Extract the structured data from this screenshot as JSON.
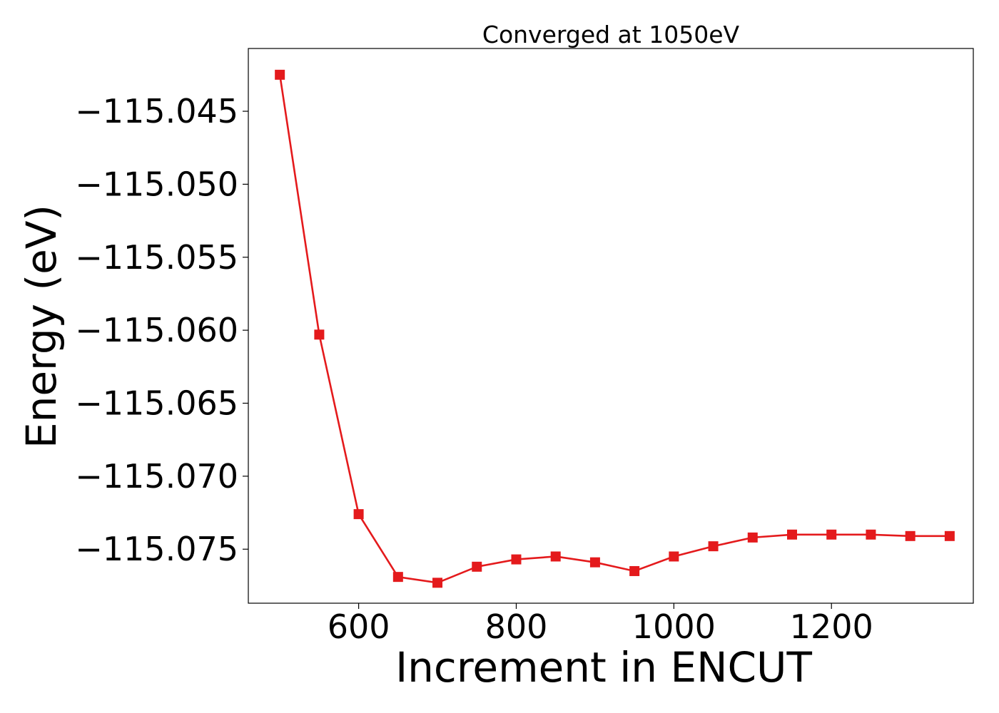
{
  "chart_data": {
    "type": "line",
    "title": "Converged at 1050eV",
    "xlabel": "Increment in ENCUT",
    "ylabel": "Energy (eV)",
    "xlim": [
      460,
      1380
    ],
    "ylim": [
      -115.0787,
      -115.0407
    ],
    "x_ticks": [
      600,
      800,
      1000,
      1200
    ],
    "y_ticks": [
      -115.075,
      -115.07,
      -115.065,
      -115.06,
      -115.055,
      -115.05,
      -115.045
    ],
    "x_tick_labels": [
      "600",
      "800",
      "1000",
      "1200"
    ],
    "y_tick_labels": [
      "−115.075",
      "−115.070",
      "−115.065",
      "−115.060",
      "−115.055",
      "−115.050",
      "−115.045"
    ],
    "grid": false,
    "legend": false,
    "series": [
      {
        "color": "#e41a1c",
        "marker": "square",
        "x": [
          500,
          550,
          600,
          650,
          700,
          750,
          800,
          850,
          900,
          950,
          1000,
          1050,
          1100,
          1150,
          1200,
          1250,
          1300,
          1350
        ],
        "y": [
          -115.0425,
          -115.0603,
          -115.0726,
          -115.0769,
          -115.0773,
          -115.0762,
          -115.0757,
          -115.0755,
          -115.0759,
          -115.0765,
          -115.0755,
          -115.0748,
          -115.0742,
          -115.074,
          -115.074,
          -115.074,
          -115.0741,
          -115.0741
        ]
      }
    ]
  }
}
